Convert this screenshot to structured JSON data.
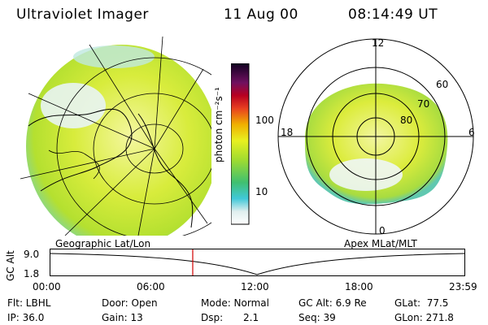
{
  "header": {
    "instrument": "Ultraviolet Imager",
    "date": "11 Aug 00",
    "time": "08:14:49 UT"
  },
  "colorbar": {
    "label": "photon cm⁻²s⁻¹",
    "ticks": [
      "100",
      "10"
    ]
  },
  "polar_plot": {
    "mlt_labels": [
      "12",
      "18",
      "6",
      "0"
    ],
    "lat_labels": [
      "60",
      "70",
      "80"
    ]
  },
  "plot_titles": {
    "left": "Geographic Lat/Lon",
    "right": "Apex MLat/MLT"
  },
  "altitude_strip": {
    "ylabel": "GC Alt",
    "y_ticks": [
      "9.0",
      "1.8"
    ],
    "x_ticks": [
      "00:00",
      "06:00",
      "12:00",
      "18:00",
      "23:59"
    ],
    "marker_time_hours": 8.25
  },
  "info": {
    "filter": "Flt: LBHL",
    "ip": "IP: 36.0",
    "door": "Door: Open",
    "gain": "Gain: 13",
    "mode": "Mode: Normal",
    "dsp_label": "Dsp:",
    "dsp_value": "2.1",
    "gc_alt": "GC Alt: 6.9 Re",
    "seq": "Seq: 39",
    "glat": "GLat:  77.5",
    "glon": "GLon: 271.8"
  }
}
